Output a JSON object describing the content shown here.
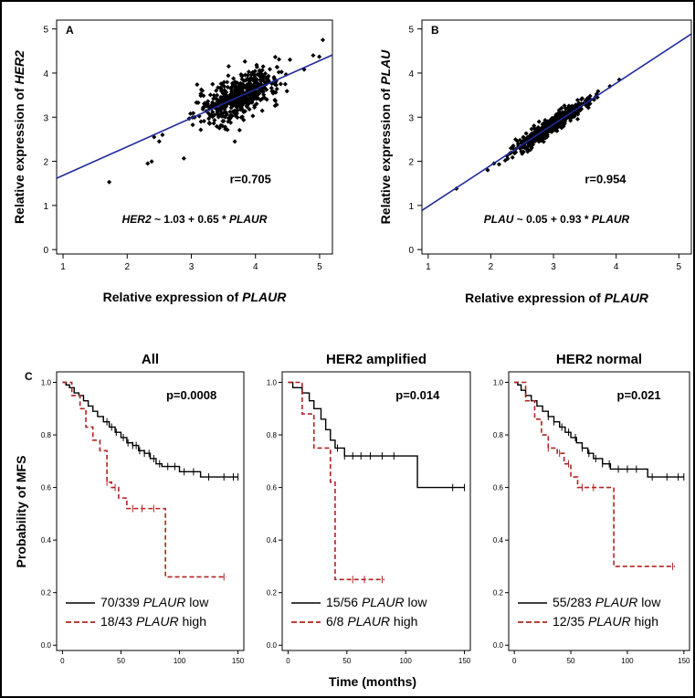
{
  "chart_data": [
    {
      "panel": "A",
      "type": "scatter",
      "xlabel_text": "Relative expression of ",
      "xlabel_gene": "PLAUR",
      "ylabel_text": "Relative expression of ",
      "ylabel_gene": "HER2",
      "xticks": [
        "1",
        "2",
        "3",
        "4",
        "5"
      ],
      "yticks": [
        "0",
        "1",
        "2",
        "3",
        "4",
        "5"
      ],
      "xlim": [
        0.9,
        5.2
      ],
      "ylim": [
        -0.1,
        5.2
      ],
      "correlation": "r=0.705",
      "equation_gene": "HER2",
      "equation_body": " ~ 1.03 + 0.65 * ",
      "equation_var": "PLAUR",
      "fit": {
        "intercept": 1.03,
        "slope": 0.65
      },
      "cloud": {
        "n": 520,
        "center": [
          3.75,
          3.5
        ],
        "sd_x": 0.32,
        "sd_y": 0.28
      },
      "outliers": [
        [
          1.72,
          1.53
        ],
        [
          2.32,
          1.95
        ],
        [
          2.42,
          2.55
        ],
        [
          2.5,
          2.45
        ],
        [
          2.55,
          2.6
        ],
        [
          5.05,
          4.75
        ],
        [
          4.9,
          4.4
        ]
      ],
      "point_color": "#000000",
      "line_color": "#1f2a9c"
    },
    {
      "panel": "B",
      "type": "scatter",
      "xlabel_text": "Relative expression of ",
      "xlabel_gene": "PLAUR",
      "ylabel_text": "Relative expression of ",
      "ylabel_gene": "PLAU",
      "xticks": [
        "1",
        "2",
        "3",
        "4",
        "5"
      ],
      "yticks": [
        "0",
        "1",
        "2",
        "3",
        "4",
        "5"
      ],
      "xlim": [
        0.9,
        5.2
      ],
      "ylim": [
        -0.1,
        5.2
      ],
      "correlation": "r=0.954",
      "equation_gene": "PLAU",
      "equation_body": " ~ 0.05 + 0.93 * ",
      "equation_var": "PLAUR",
      "fit": {
        "intercept": 0.05,
        "slope": 0.93
      },
      "cloud": {
        "n": 520,
        "center": [
          2.95,
          2.8
        ],
        "sd_x": 0.28,
        "sd_y": 0.26
      },
      "outliers": [
        [
          1.45,
          1.38
        ],
        [
          1.95,
          1.8
        ],
        [
          2.05,
          1.95
        ],
        [
          3.9,
          3.7
        ],
        [
          4.05,
          3.85
        ],
        [
          3.7,
          3.45
        ]
      ],
      "point_color": "#000000",
      "line_color": "#1f2a9c"
    },
    {
      "panel": "C",
      "type": "line",
      "subtype": "kaplan-meier",
      "ylabel": "Probability of MFS",
      "xlabel": "Time (months)",
      "xticks": [
        "0",
        "50",
        "100",
        "150"
      ],
      "yticks": [
        "0.0",
        "0.2",
        "0.4",
        "0.6",
        "0.8",
        "1.0"
      ],
      "xlim": [
        -5,
        155
      ],
      "ylim": [
        -0.02,
        1.04
      ],
      "low_color": "#000000",
      "high_color": "#b22222",
      "subplots": [
        {
          "title": "All",
          "pvalue": "p=0.0008",
          "low_label_count": "70/339 ",
          "low_label_gene": "PLAUR",
          "low_label_level": " low",
          "high_label_count": "18/43 ",
          "high_label_gene": "PLAUR",
          "high_label_level": " high",
          "low": [
            [
              0,
              1.0
            ],
            [
              3,
              0.99
            ],
            [
              6,
              0.98
            ],
            [
              10,
              0.96
            ],
            [
              14,
              0.95
            ],
            [
              18,
              0.93
            ],
            [
              22,
              0.91
            ],
            [
              26,
              0.89
            ],
            [
              30,
              0.87
            ],
            [
              35,
              0.85
            ],
            [
              40,
              0.83
            ],
            [
              45,
              0.81
            ],
            [
              50,
              0.79
            ],
            [
              55,
              0.77
            ],
            [
              60,
              0.76
            ],
            [
              65,
              0.74
            ],
            [
              70,
              0.73
            ],
            [
              75,
              0.71
            ],
            [
              80,
              0.69
            ],
            [
              85,
              0.68
            ],
            [
              100,
              0.66
            ],
            [
              118,
              0.64
            ],
            [
              150,
              0.64
            ]
          ],
          "low_censor": [
            38,
            42,
            46,
            52,
            56,
            60,
            63,
            66,
            70,
            74,
            78,
            83,
            90,
            96,
            104,
            112,
            125,
            138,
            146,
            150
          ],
          "high": [
            [
              0,
              1.0
            ],
            [
              8,
              0.95
            ],
            [
              15,
              0.9
            ],
            [
              20,
              0.83
            ],
            [
              26,
              0.78
            ],
            [
              32,
              0.74
            ],
            [
              38,
              0.62
            ],
            [
              42,
              0.6
            ],
            [
              48,
              0.56
            ],
            [
              55,
              0.52
            ],
            [
              88,
              0.52
            ],
            [
              88,
              0.26
            ],
            [
              140,
              0.26
            ]
          ],
          "high_censor": [
            38,
            45,
            60,
            68,
            78,
            138
          ]
        },
        {
          "title": "HER2 amplified",
          "pvalue": "p=0.014",
          "low_label_count": "15/56 ",
          "low_label_gene": "PLAUR",
          "low_label_level": " low",
          "high_label_count": "6/8 ",
          "high_label_gene": "PLAUR",
          "high_label_level": " high",
          "low": [
            [
              0,
              1.0
            ],
            [
              4,
              0.98
            ],
            [
              12,
              0.96
            ],
            [
              18,
              0.93
            ],
            [
              22,
              0.9
            ],
            [
              28,
              0.86
            ],
            [
              32,
              0.82
            ],
            [
              36,
              0.78
            ],
            [
              40,
              0.75
            ],
            [
              48,
              0.72
            ],
            [
              110,
              0.72
            ],
            [
              110,
              0.6
            ],
            [
              150,
              0.6
            ]
          ],
          "low_censor": [
            42,
            48,
            55,
            62,
            70,
            80,
            90,
            140,
            150
          ],
          "high": [
            [
              0,
              1.0
            ],
            [
              12,
              1.0
            ],
            [
              12,
              0.88
            ],
            [
              22,
              0.88
            ],
            [
              22,
              0.75
            ],
            [
              36,
              0.75
            ],
            [
              36,
              0.62
            ],
            [
              40,
              0.62
            ],
            [
              40,
              0.25
            ],
            [
              82,
              0.25
            ]
          ],
          "high_censor": [
            55,
            65,
            80
          ]
        },
        {
          "title": "HER2 normal",
          "pvalue": "p=0.021",
          "low_label_count": "55/283 ",
          "low_label_gene": "PLAUR",
          "low_label_level": " low",
          "high_label_count": "12/35 ",
          "high_label_gene": "PLAUR",
          "high_label_level": " high",
          "low": [
            [
              0,
              1.0
            ],
            [
              3,
              0.99
            ],
            [
              6,
              0.97
            ],
            [
              10,
              0.95
            ],
            [
              15,
              0.93
            ],
            [
              20,
              0.91
            ],
            [
              25,
              0.89
            ],
            [
              30,
              0.87
            ],
            [
              35,
              0.85
            ],
            [
              40,
              0.83
            ],
            [
              45,
              0.81
            ],
            [
              50,
              0.79
            ],
            [
              55,
              0.77
            ],
            [
              60,
              0.75
            ],
            [
              65,
              0.73
            ],
            [
              70,
              0.71
            ],
            [
              78,
              0.69
            ],
            [
              85,
              0.67
            ],
            [
              118,
              0.64
            ],
            [
              150,
              0.64
            ]
          ],
          "low_censor": [
            30,
            35,
            42,
            48,
            54,
            60,
            66,
            72,
            78,
            84,
            92,
            100,
            108,
            122,
            135,
            145,
            150
          ],
          "high": [
            [
              0,
              1.0
            ],
            [
              10,
              0.93
            ],
            [
              18,
              0.86
            ],
            [
              24,
              0.8
            ],
            [
              30,
              0.75
            ],
            [
              38,
              0.73
            ],
            [
              44,
              0.69
            ],
            [
              50,
              0.64
            ],
            [
              56,
              0.6
            ],
            [
              88,
              0.6
            ],
            [
              88,
              0.3
            ],
            [
              142,
              0.3
            ]
          ],
          "high_censor": [
            30,
            40,
            48,
            60,
            70,
            140
          ]
        }
      ]
    }
  ]
}
